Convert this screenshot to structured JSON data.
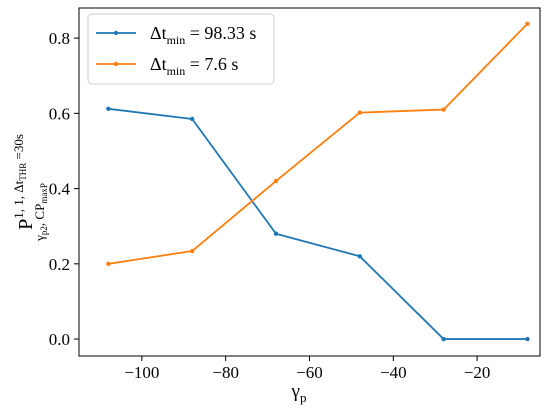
{
  "chart_data": {
    "type": "line",
    "xlabel": "γ",
    "xlabel_sub": "p",
    "ylabel": {
      "base": "P",
      "sup": "1, 1, Δt",
      "sup_sub": "THR",
      "sup_tail": " =30s",
      "sub": "γ",
      "sub_sub": "p2",
      "sub_mid": ", CP",
      "sub_sub2": "maxP"
    },
    "xlim": [
      -115,
      -5
    ],
    "ylim": [
      -0.045,
      0.88
    ],
    "xticks": [
      -100,
      -80,
      -60,
      -40,
      -20
    ],
    "xtick_labels": [
      "−100",
      "−80",
      "−60",
      "−40",
      "−20"
    ],
    "yticks": [
      0.0,
      0.2,
      0.4,
      0.6,
      0.8
    ],
    "ytick_labels": [
      "0.0",
      "0.2",
      "0.4",
      "0.6",
      "0.8"
    ],
    "x": [
      -108,
      -88,
      -68,
      -48,
      -28,
      -8
    ],
    "grid": false,
    "legend_position": "top-left",
    "series": [
      {
        "name_base": "Δt",
        "name_sub": "min",
        "name_tail": " = 98.33 s",
        "color": "#1f77b4",
        "values": [
          0.612,
          0.585,
          0.28,
          0.22,
          0.0,
          0.0
        ]
      },
      {
        "name_base": "Δt",
        "name_sub": "min",
        "name_tail": " = 7.6 s",
        "color": "#ff7f0e",
        "values": [
          0.2,
          0.234,
          0.42,
          0.602,
          0.61,
          0.838
        ]
      }
    ]
  }
}
